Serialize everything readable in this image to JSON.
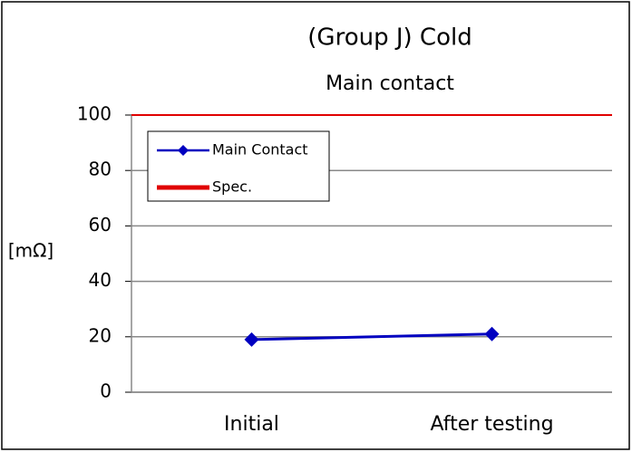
{
  "chart_data": {
    "type": "line",
    "title": "(Group J) Cold",
    "subtitle": "Main contact",
    "y_label": "[mΩ]",
    "categories": [
      "Initial",
      "After testing"
    ],
    "series": [
      {
        "name": "Main Contact",
        "color": "#0000c0",
        "values": [
          19,
          21
        ],
        "marker": "diamond"
      },
      {
        "name": "Spec.",
        "color": "#e00000",
        "values": [
          100,
          100
        ],
        "marker": "none"
      }
    ],
    "ylim": [
      0,
      100
    ],
    "yticks": [
      0,
      20,
      40,
      60,
      80,
      100
    ],
    "grid": true,
    "legend": "upper left"
  }
}
